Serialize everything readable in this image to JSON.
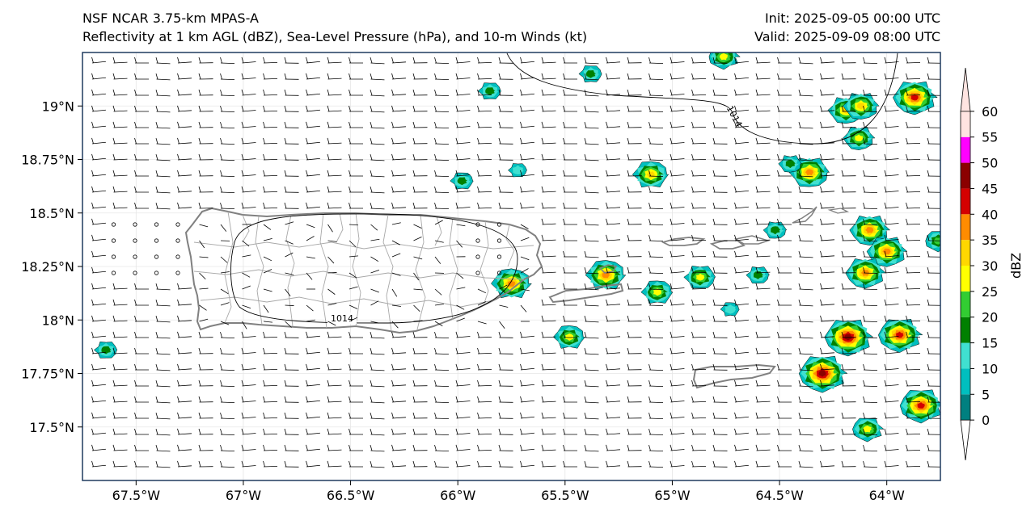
{
  "header": {
    "model": "NSF NCAR 3.75-km MPAS-A",
    "fields": "Reflectivity at 1 km AGL (dBZ), Sea-Level Pressure (hPa), and 10-m Winds (kt)",
    "init": "Init: 2025-09-05 00:00 UTC",
    "valid": "Valid: 2025-09-09 08:00 UTC"
  },
  "map": {
    "lon_range": [
      -67.75,
      -63.75
    ],
    "lat_range": [
      17.25,
      19.25
    ],
    "lon_ticks": [
      {
        "value": -67.5,
        "label": "67.5°W"
      },
      {
        "value": -67.0,
        "label": "67°W"
      },
      {
        "value": -66.5,
        "label": "66.5°W"
      },
      {
        "value": -66.0,
        "label": "66°W"
      },
      {
        "value": -65.5,
        "label": "65.5°W"
      },
      {
        "value": -65.0,
        "label": "65°W"
      },
      {
        "value": -64.5,
        "label": "64.5°W"
      },
      {
        "value": -64.0,
        "label": "64°W"
      }
    ],
    "lat_ticks": [
      {
        "value": 19.0,
        "label": "19°N"
      },
      {
        "value": 18.75,
        "label": "18.75°N"
      },
      {
        "value": 18.5,
        "label": "18.5°N"
      },
      {
        "value": 18.25,
        "label": "18.25°N"
      },
      {
        "value": 18.0,
        "label": "18°N"
      },
      {
        "value": 17.75,
        "label": "17.75°N"
      },
      {
        "value": 17.5,
        "label": "17.5°N"
      }
    ],
    "isobars": [
      {
        "label": "1014",
        "where": "around Puerto Rico"
      },
      {
        "label": "1014",
        "where": "north-east corner"
      }
    ],
    "storm_cells": [
      {
        "lon": -65.75,
        "lat": 18.17,
        "peak": 35
      },
      {
        "lon": -65.31,
        "lat": 18.21,
        "peak": 35
      },
      {
        "lon": -65.48,
        "lat": 17.92,
        "peak": 25
      },
      {
        "lon": -65.1,
        "lat": 18.68,
        "peak": 30
      },
      {
        "lon": -65.07,
        "lat": 18.13,
        "peak": 25
      },
      {
        "lon": -64.73,
        "lat": 18.05,
        "peak": 10
      },
      {
        "lon": -65.98,
        "lat": 18.65,
        "peak": 15
      },
      {
        "lon": -65.38,
        "lat": 19.15,
        "peak": 15
      },
      {
        "lon": -65.85,
        "lat": 19.07,
        "peak": 15
      },
      {
        "lon": -65.72,
        "lat": 18.7,
        "peak": 10
      },
      {
        "lon": -67.64,
        "lat": 17.86,
        "peak": 15
      },
      {
        "lon": -64.87,
        "lat": 18.2,
        "peak": 25
      },
      {
        "lon": -64.6,
        "lat": 18.21,
        "peak": 15
      },
      {
        "lon": -64.52,
        "lat": 18.42,
        "peak": 15
      },
      {
        "lon": -64.36,
        "lat": 18.69,
        "peak": 35
      },
      {
        "lon": -64.45,
        "lat": 18.73,
        "peak": 15
      },
      {
        "lon": -64.19,
        "lat": 18.98,
        "peak": 30
      },
      {
        "lon": -64.12,
        "lat": 19.0,
        "peak": 30
      },
      {
        "lon": -64.13,
        "lat": 18.85,
        "peak": 25
      },
      {
        "lon": -64.08,
        "lat": 18.42,
        "peak": 35
      },
      {
        "lon": -64.0,
        "lat": 18.32,
        "peak": 35
      },
      {
        "lon": -64.1,
        "lat": 18.22,
        "peak": 35
      },
      {
        "lon": -63.87,
        "lat": 19.04,
        "peak": 40
      },
      {
        "lon": -64.18,
        "lat": 17.92,
        "peak": 45
      },
      {
        "lon": -64.3,
        "lat": 17.75,
        "peak": 45
      },
      {
        "lon": -63.94,
        "lat": 17.93,
        "peak": 40
      },
      {
        "lon": -63.84,
        "lat": 17.6,
        "peak": 40
      },
      {
        "lon": -64.09,
        "lat": 17.49,
        "peak": 25
      },
      {
        "lon": -64.76,
        "lat": 19.23,
        "peak": 25
      },
      {
        "lon": -63.76,
        "lat": 18.37,
        "peak": 20
      }
    ]
  },
  "colorbar": {
    "label": "dBZ",
    "levels": [
      0,
      5,
      10,
      15,
      20,
      25,
      30,
      35,
      40,
      45,
      50,
      55,
      60
    ],
    "colors": [
      "#008080",
      "#00bfbf",
      "#40e0d0",
      "#008000",
      "#32cd32",
      "#ffff00",
      "#ffd700",
      "#ff8c00",
      "#d40000",
      "#8b0000",
      "#ff00ff",
      "#ffe4e1"
    ]
  },
  "colors": {
    "land": "#ffffff",
    "coast": "#808080",
    "municipal": "#a8a8a8",
    "barb": "#000000",
    "frame": "#1f3a5f",
    "cell_outline": "#000000"
  }
}
